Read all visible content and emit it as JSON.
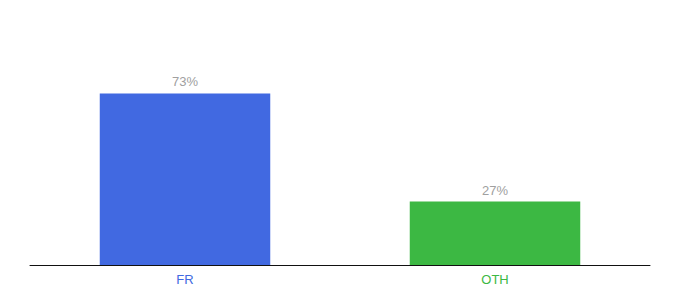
{
  "chart_data": {
    "type": "bar",
    "categories": [
      "FR",
      "OTH"
    ],
    "values": [
      73,
      27
    ],
    "value_labels": [
      "73%",
      "27%"
    ],
    "colors": [
      "#4169e1",
      "#3cb843"
    ],
    "ylim": [
      0,
      100
    ],
    "grid": false,
    "data_labels": true,
    "tick_labels": "x"
  }
}
